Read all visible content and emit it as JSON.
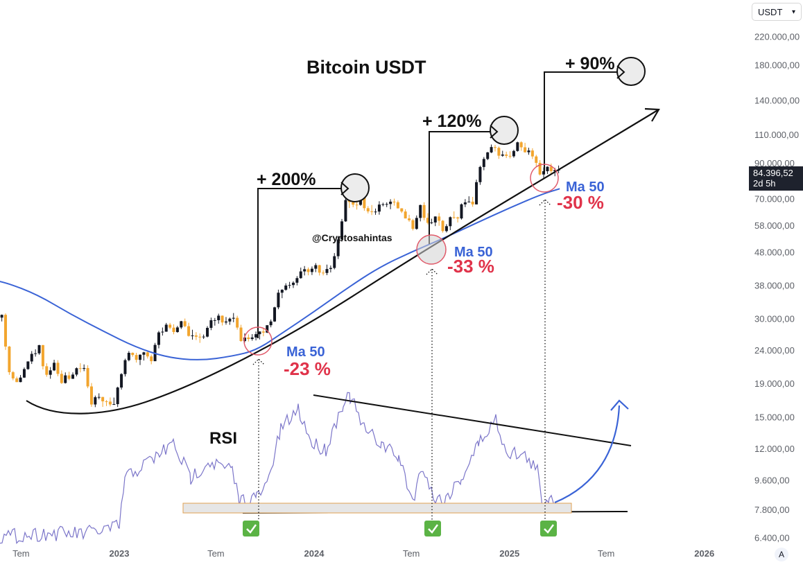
{
  "chart_data": {
    "type": "candlestick",
    "title": "Bitcoin USDT",
    "watermark": "@Cryptosahintas",
    "y_scale": "log",
    "ylim": [
      5800,
      250000
    ],
    "y_ticks": [
      {
        "value": 220000,
        "label": "220.000,00"
      },
      {
        "value": 180000,
        "label": "180.000,00"
      },
      {
        "value": 140000,
        "label": "140.000,00"
      },
      {
        "value": 110000,
        "label": "110.000,00"
      },
      {
        "value": 90000,
        "label": "90.000,00"
      },
      {
        "value": 70000,
        "label": "70.000,00"
      },
      {
        "value": 58000,
        "label": "58.000,00"
      },
      {
        "value": 48000,
        "label": "48.000,00"
      },
      {
        "value": 38000,
        "label": "38.000,00"
      },
      {
        "value": 30000,
        "label": "30.000,00"
      },
      {
        "value": 24000,
        "label": "24.000,00"
      },
      {
        "value": 19000,
        "label": "19.000,00"
      },
      {
        "value": 15000,
        "label": "15.000,00"
      },
      {
        "value": 12000,
        "label": "12.000,00"
      },
      {
        "value": 9600,
        "label": "9.600,00"
      },
      {
        "value": 7800,
        "label": "7.800,00"
      },
      {
        "value": 6400,
        "label": "6.400,00"
      }
    ],
    "x_ticks": [
      {
        "date": "2022-07-01",
        "label": "Tem",
        "bold": false
      },
      {
        "date": "2023-01-01",
        "label": "2023",
        "bold": true
      },
      {
        "date": "2023-07-01",
        "label": "Tem",
        "bold": false
      },
      {
        "date": "2024-01-01",
        "label": "2024",
        "bold": true
      },
      {
        "date": "2024-07-01",
        "label": "Tem",
        "bold": false
      },
      {
        "date": "2025-01-01",
        "label": "2025",
        "bold": true
      },
      {
        "date": "2025-07-01",
        "label": "Tem",
        "bold": false
      },
      {
        "date": "2026-01-01",
        "label": "2026",
        "bold": true
      }
    ],
    "xlim": [
      "2022-05-01",
      "2026-05-20"
    ],
    "last_price_label": "84.396,52",
    "countdown_label": "2d 5h",
    "closes": [
      {
        "date": "2022-05-02",
        "close": 31500
      },
      {
        "date": "2022-05-16",
        "close": 29200
      },
      {
        "date": "2022-05-30",
        "close": 30000
      },
      {
        "date": "2022-06-13",
        "close": 20500
      },
      {
        "date": "2022-06-27",
        "close": 19300
      },
      {
        "date": "2022-07-11",
        "close": 20800
      },
      {
        "date": "2022-07-25",
        "close": 23500
      },
      {
        "date": "2022-08-08",
        "close": 24200
      },
      {
        "date": "2022-08-22",
        "close": 20100
      },
      {
        "date": "2022-09-05",
        "close": 21700
      },
      {
        "date": "2022-09-19",
        "close": 19300
      },
      {
        "date": "2022-10-03",
        "close": 19500
      },
      {
        "date": "2022-10-17",
        "close": 20700
      },
      {
        "date": "2022-10-31",
        "close": 21200
      },
      {
        "date": "2022-11-14",
        "close": 16500
      },
      {
        "date": "2022-11-28",
        "close": 17100
      },
      {
        "date": "2022-12-12",
        "close": 16700
      },
      {
        "date": "2022-12-26",
        "close": 16600
      },
      {
        "date": "2023-01-09",
        "close": 20900
      },
      {
        "date": "2023-01-23",
        "close": 23400
      },
      {
        "date": "2023-02-06",
        "close": 21800
      },
      {
        "date": "2023-02-20",
        "close": 23200
      },
      {
        "date": "2023-03-06",
        "close": 22100
      },
      {
        "date": "2023-03-20",
        "close": 27500
      },
      {
        "date": "2023-04-03",
        "close": 28400
      },
      {
        "date": "2023-04-17",
        "close": 27600
      },
      {
        "date": "2023-05-01",
        "close": 28900
      },
      {
        "date": "2023-05-15",
        "close": 26800
      },
      {
        "date": "2023-05-29",
        "close": 27200
      },
      {
        "date": "2023-06-12",
        "close": 25600
      },
      {
        "date": "2023-06-26",
        "close": 30500
      },
      {
        "date": "2023-07-10",
        "close": 30300
      },
      {
        "date": "2023-07-24",
        "close": 29300
      },
      {
        "date": "2023-08-07",
        "close": 29400
      },
      {
        "date": "2023-08-21",
        "close": 26000
      },
      {
        "date": "2023-09-04",
        "close": 25900
      },
      {
        "date": "2023-09-18",
        "close": 26600
      },
      {
        "date": "2023-10-02",
        "close": 27900
      },
      {
        "date": "2023-10-16",
        "close": 30000
      },
      {
        "date": "2023-10-30",
        "close": 35000
      },
      {
        "date": "2023-11-13",
        "close": 37400
      },
      {
        "date": "2023-11-27",
        "close": 37800
      },
      {
        "date": "2023-12-11",
        "close": 41500
      },
      {
        "date": "2023-12-25",
        "close": 42700
      },
      {
        "date": "2024-01-08",
        "close": 42800
      },
      {
        "date": "2024-01-22",
        "close": 41800
      },
      {
        "date": "2024-02-05",
        "close": 42600
      },
      {
        "date": "2024-02-19",
        "close": 52000
      },
      {
        "date": "2024-03-04",
        "close": 68400
      },
      {
        "date": "2024-03-18",
        "close": 67200
      },
      {
        "date": "2024-04-01",
        "close": 69400
      },
      {
        "date": "2024-04-15",
        "close": 64900
      },
      {
        "date": "2024-04-29",
        "close": 63500
      },
      {
        "date": "2024-05-13",
        "close": 66200
      },
      {
        "date": "2024-05-27",
        "close": 67800
      },
      {
        "date": "2024-06-10",
        "close": 66600
      },
      {
        "date": "2024-06-24",
        "close": 62700
      },
      {
        "date": "2024-07-08",
        "close": 58200
      },
      {
        "date": "2024-07-22",
        "close": 67400
      },
      {
        "date": "2024-08-05",
        "close": 58700
      },
      {
        "date": "2024-08-19",
        "close": 60300
      },
      {
        "date": "2024-09-02",
        "close": 56600
      },
      {
        "date": "2024-09-16",
        "close": 60600
      },
      {
        "date": "2024-09-30",
        "close": 62800
      },
      {
        "date": "2024-10-14",
        "close": 68100
      },
      {
        "date": "2024-10-28",
        "close": 69300
      },
      {
        "date": "2024-11-11",
        "close": 89000
      },
      {
        "date": "2024-11-25",
        "close": 97400
      },
      {
        "date": "2024-12-09",
        "close": 101300
      },
      {
        "date": "2024-12-23",
        "close": 94400
      },
      {
        "date": "2025-01-06",
        "close": 94500
      },
      {
        "date": "2025-01-20",
        "close": 102000
      },
      {
        "date": "2025-02-03",
        "close": 97600
      },
      {
        "date": "2025-02-17",
        "close": 96300
      },
      {
        "date": "2025-03-03",
        "close": 84200
      },
      {
        "date": "2025-03-17",
        "close": 86000
      },
      {
        "date": "2025-03-31",
        "close": 84396
      }
    ],
    "ma50": [
      {
        "date": "2022-05-01",
        "value": 39500
      },
      {
        "date": "2022-06-01",
        "value": 38800
      },
      {
        "date": "2022-08-01",
        "value": 35500
      },
      {
        "date": "2022-10-01",
        "value": 31000
      },
      {
        "date": "2022-12-01",
        "value": 27500
      },
      {
        "date": "2023-02-01",
        "value": 24500
      },
      {
        "date": "2023-04-01",
        "value": 22800
      },
      {
        "date": "2023-06-01",
        "value": 22300
      },
      {
        "date": "2023-08-01",
        "value": 23000
      },
      {
        "date": "2023-09-15",
        "value": 24000
      },
      {
        "date": "2023-11-01",
        "value": 27000
      },
      {
        "date": "2024-01-01",
        "value": 31500
      },
      {
        "date": "2024-03-01",
        "value": 37000
      },
      {
        "date": "2024-05-01",
        "value": 43000
      },
      {
        "date": "2024-07-01",
        "value": 48000
      },
      {
        "date": "2024-09-01",
        "value": 53000
      },
      {
        "date": "2024-11-01",
        "value": 59000
      },
      {
        "date": "2025-01-01",
        "value": 65500
      },
      {
        "date": "2025-03-01",
        "value": 72000
      },
      {
        "date": "2025-04-05",
        "value": 75000
      }
    ],
    "rsi_label": "RSI",
    "annotations": [
      {
        "kind": "gain",
        "text": "+ 200%"
      },
      {
        "kind": "gain",
        "text": "+ 120%"
      },
      {
        "kind": "gain",
        "text": "+ 90%"
      },
      {
        "kind": "ma",
        "text": "Ma 50"
      },
      {
        "kind": "drop",
        "text": "-23 %"
      },
      {
        "kind": "ma",
        "text": "Ma 50"
      },
      {
        "kind": "drop",
        "text": "-33 %"
      },
      {
        "kind": "ma",
        "text": "Ma 50"
      },
      {
        "kind": "drop",
        "text": "-30 %"
      }
    ],
    "checkmarks": 3
  },
  "ui": {
    "currency_selector": "USDT",
    "auto_scale": "A"
  },
  "colors": {
    "up": "#131722",
    "down": "#f2a52e",
    "ma": "#3a63d6",
    "rsi": "#7b75c9",
    "drop": "#e0334a",
    "ma_label": "#3a63d6",
    "check": "#5bb345",
    "axis_text": "#5d6067"
  }
}
